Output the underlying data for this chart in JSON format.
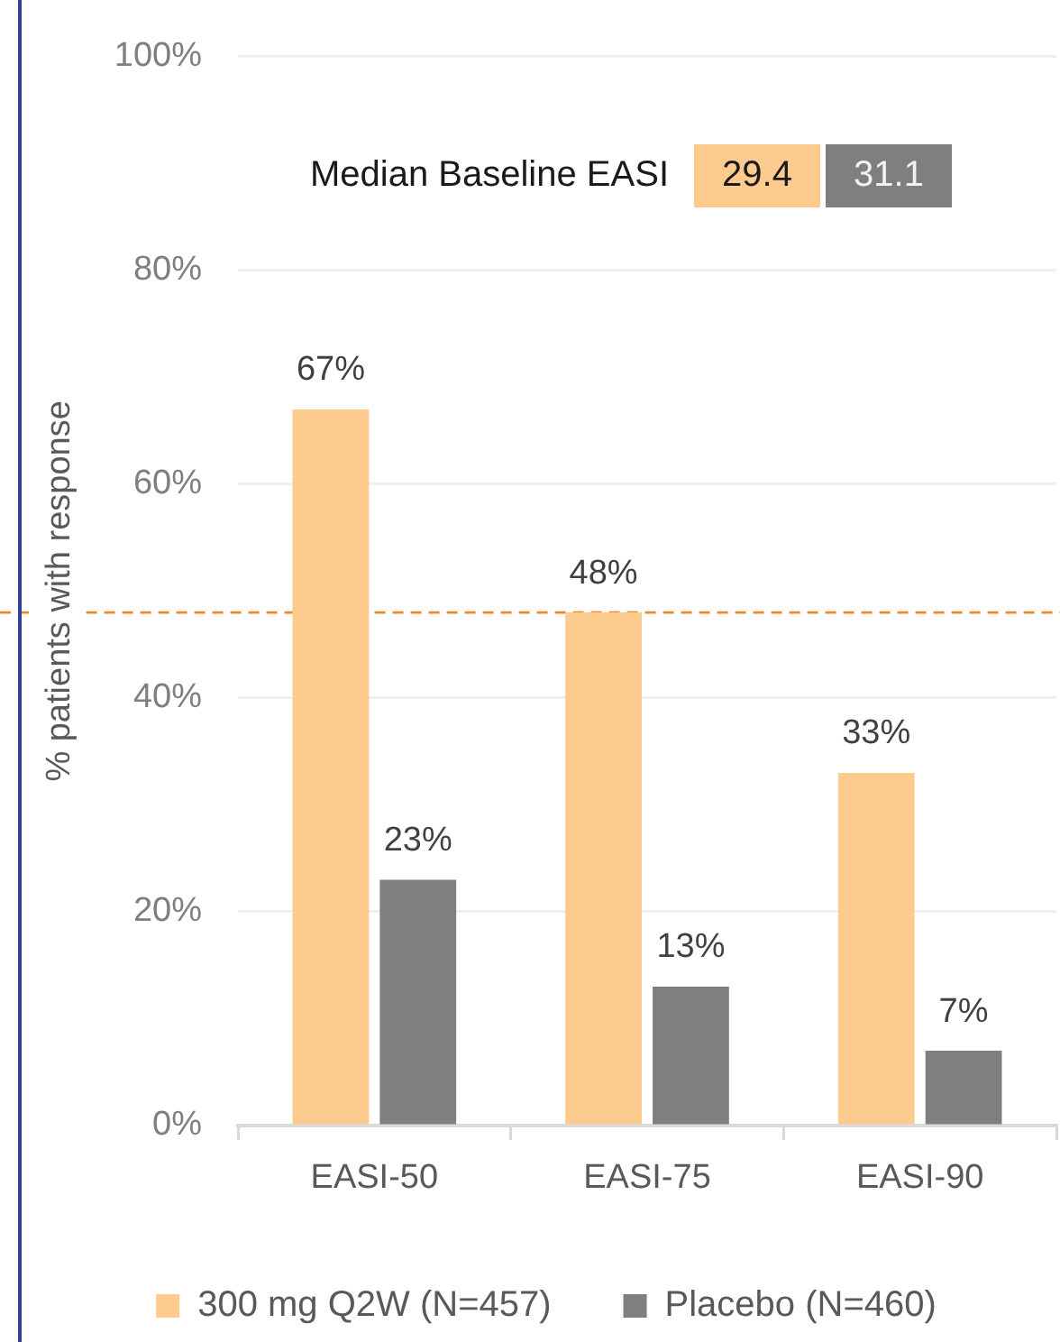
{
  "chart_data": {
    "type": "bar",
    "categories": [
      "EASI-50",
      "EASI-75",
      "EASI-90"
    ],
    "series": [
      {
        "name": "300 mg Q2W (N=457)",
        "color": "#fecb8f",
        "values": [
          67,
          48,
          33
        ],
        "value_labels": [
          "67%",
          "48%",
          "33%"
        ]
      },
      {
        "name": "Placebo (N=460)",
        "color": "#7f7f7f",
        "values": [
          23,
          13,
          7
        ],
        "value_labels": [
          "23%",
          "13%",
          "7%"
        ]
      }
    ],
    "ylabel": "% patients with response",
    "ylim": [
      0,
      100
    ],
    "yticks": [
      {
        "value": 0,
        "label": "0%"
      },
      {
        "value": 20,
        "label": "20%"
      },
      {
        "value": 40,
        "label": "40%"
      },
      {
        "value": 60,
        "label": "60%"
      },
      {
        "value": 80,
        "label": "80%"
      },
      {
        "value": 100,
        "label": "100%"
      }
    ],
    "grid": "y",
    "legend": "bottom",
    "annotations": [
      "Median Baseline EASI",
      "29.4",
      "31.1"
    ],
    "ref_lines": [
      {
        "axis": "y",
        "value": 48,
        "color": "#e8892b",
        "line_style": "dashed"
      }
    ]
  }
}
